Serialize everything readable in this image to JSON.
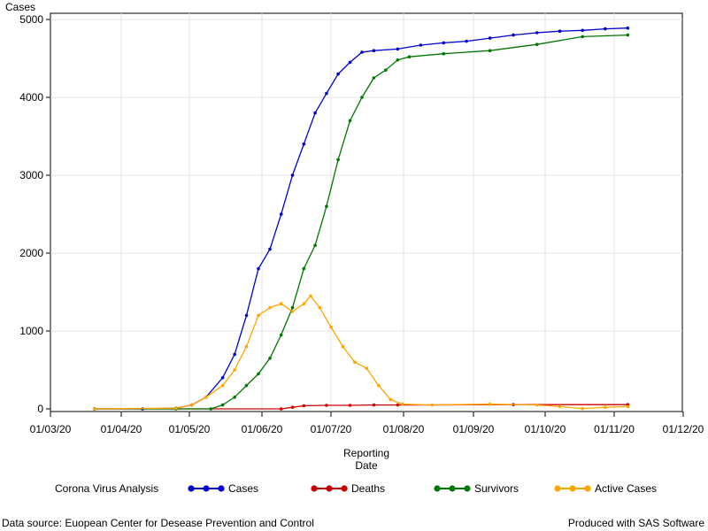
{
  "chart_data": {
    "type": "line",
    "ylabel": "Cases",
    "xlabel_lines": [
      "Reporting",
      "Date"
    ],
    "ylim": [
      0,
      5000
    ],
    "yticks": [
      "0",
      "1000",
      "2000",
      "3000",
      "4000",
      "5000"
    ],
    "xticks": [
      "01/03/20",
      "01/04/20",
      "01/05/20",
      "01/06/20",
      "01/07/20",
      "01/08/20",
      "01/09/20",
      "01/10/20",
      "01/11/20",
      "01/12/20"
    ],
    "grid": true,
    "legend_title": "Corona Virus Analysis",
    "legend_position": "bottom",
    "series": [
      {
        "name": "Cases",
        "color": "#0000cc",
        "points": [
          [
            19,
            0
          ],
          [
            40,
            0
          ],
          [
            55,
            10
          ],
          [
            62,
            50
          ],
          [
            68,
            150
          ],
          [
            75,
            400
          ],
          [
            80,
            700
          ],
          [
            85,
            1200
          ],
          [
            90,
            1800
          ],
          [
            95,
            2050
          ],
          [
            100,
            2500
          ],
          [
            105,
            3000
          ],
          [
            110,
            3400
          ],
          [
            115,
            3800
          ],
          [
            120,
            4050
          ],
          [
            125,
            4300
          ],
          [
            130,
            4450
          ],
          [
            135,
            4580
          ],
          [
            140,
            4600
          ],
          [
            150,
            4620
          ],
          [
            160,
            4670
          ],
          [
            170,
            4700
          ],
          [
            180,
            4720
          ],
          [
            190,
            4760
          ],
          [
            200,
            4800
          ],
          [
            210,
            4830
          ],
          [
            220,
            4850
          ],
          [
            230,
            4860
          ],
          [
            240,
            4880
          ],
          [
            250,
            4890
          ]
        ]
      },
      {
        "name": "Deaths",
        "color": "#cc0000",
        "points": [
          [
            19,
            0
          ],
          [
            100,
            0
          ],
          [
            105,
            20
          ],
          [
            110,
            40
          ],
          [
            120,
            45
          ],
          [
            130,
            45
          ],
          [
            140,
            50
          ],
          [
            150,
            50
          ],
          [
            200,
            55
          ],
          [
            250,
            55
          ]
        ]
      },
      {
        "name": "Survivors",
        "color": "#007700",
        "points": [
          [
            19,
            0
          ],
          [
            55,
            0
          ],
          [
            70,
            0
          ],
          [
            75,
            50
          ],
          [
            80,
            150
          ],
          [
            85,
            300
          ],
          [
            90,
            450
          ],
          [
            95,
            650
          ],
          [
            100,
            950
          ],
          [
            105,
            1300
          ],
          [
            110,
            1800
          ],
          [
            115,
            2100
          ],
          [
            120,
            2600
          ],
          [
            125,
            3200
          ],
          [
            130,
            3700
          ],
          [
            135,
            4000
          ],
          [
            140,
            4250
          ],
          [
            145,
            4350
          ],
          [
            150,
            4480
          ],
          [
            155,
            4520
          ],
          [
            170,
            4560
          ],
          [
            190,
            4600
          ],
          [
            210,
            4680
          ],
          [
            230,
            4780
          ],
          [
            250,
            4800
          ]
        ]
      },
      {
        "name": "Active Cases",
        "color": "#ffa500",
        "points": [
          [
            19,
            0
          ],
          [
            55,
            10
          ],
          [
            62,
            50
          ],
          [
            68,
            150
          ],
          [
            75,
            300
          ],
          [
            80,
            500
          ],
          [
            85,
            800
          ],
          [
            90,
            1200
          ],
          [
            95,
            1300
          ],
          [
            100,
            1350
          ],
          [
            105,
            1250
          ],
          [
            110,
            1350
          ],
          [
            113,
            1450
          ],
          [
            117,
            1300
          ],
          [
            122,
            1050
          ],
          [
            127,
            800
          ],
          [
            132,
            600
          ],
          [
            137,
            520
          ],
          [
            142,
            300
          ],
          [
            147,
            120
          ],
          [
            152,
            60
          ],
          [
            165,
            50
          ],
          [
            190,
            60
          ],
          [
            210,
            50
          ],
          [
            220,
            30
          ],
          [
            230,
            5
          ],
          [
            240,
            20
          ],
          [
            250,
            30
          ]
        ]
      }
    ]
  },
  "footer": {
    "left": "Data source: Euopean Center for Desease Prevention and Control",
    "right": "Produced with SAS Software"
  }
}
